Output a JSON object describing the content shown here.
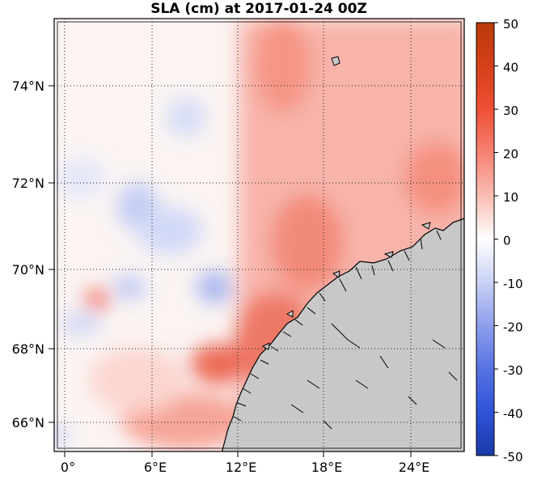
{
  "title": "SLA (cm) at 2017-01-24 00Z",
  "lat_labels": [
    "74°N",
    "72°N",
    "70°N",
    "68°N",
    "66°N"
  ],
  "lon_labels": [
    "0°",
    "6°E",
    "12°E",
    "18°E",
    "24°E"
  ],
  "colorbar": {
    "min": -50,
    "max": 50,
    "tick_labels": [
      "50",
      "40",
      "30",
      "20",
      "10",
      "0",
      "-10",
      "-20",
      "-30",
      "-40",
      "-50"
    ],
    "colors": [
      "#b83a0b",
      "#e03a24",
      "#f36a55",
      "#f9a89c",
      "#fde6e2",
      "#ffffff",
      "#e5e8fa",
      "#a6b3ef",
      "#5c78e3",
      "#2d4ed6",
      "#1a3aa8"
    ]
  },
  "land_color": "#c8c8c8",
  "grid": "dotted"
}
